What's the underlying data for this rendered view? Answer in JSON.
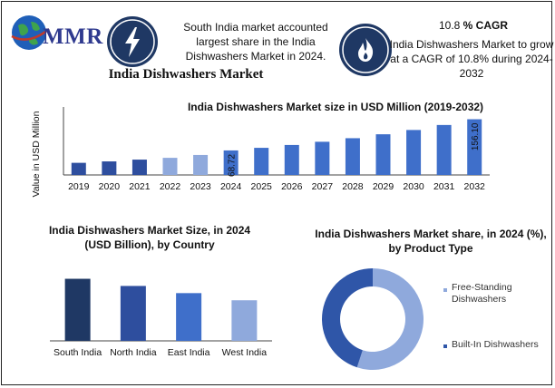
{
  "header": {
    "logo_text": "MMR",
    "info1": "South India market accounted largest share in the India Dishwashers Market in 2024.",
    "cagr_prefix": "10.8 ",
    "cagr_label": "% CAGR",
    "info2": "India Dishwashers Market to grow at a CAGR of 10.8% during 2024-2032",
    "main_title": "India Dishwashers Market"
  },
  "colors": {
    "navy": "#1f3864",
    "bar_dark": "#2e4e9e",
    "bar_mid": "#3f6fca",
    "bar_light": "#8fa9dc",
    "pie_light": "#8fa9dc",
    "pie_dark": "#2f56a8"
  },
  "chart_data": [
    {
      "type": "bar",
      "title": "India Dishwashers Market size in USD Million (2019-2032)",
      "ylabel": "Value in USD Million",
      "xlabel": "",
      "categories": [
        "2019",
        "2020",
        "2021",
        "2022",
        "2023",
        "2024",
        "2025",
        "2026",
        "2027",
        "2028",
        "2029",
        "2030",
        "2031",
        "2032"
      ],
      "values": [
        34,
        38,
        43,
        48,
        56,
        68.72,
        76,
        84,
        93,
        103,
        114,
        126,
        140,
        156.1
      ],
      "data_labels": {
        "5": "68.72",
        "13": "156.10"
      },
      "ylim": [
        0,
        160
      ],
      "grid": false
    },
    {
      "type": "bar",
      "title": "India Dishwashers Market Size, in 2024 (USD Billion), by Country",
      "categories": [
        "South India",
        "North India",
        "East India",
        "West India"
      ],
      "values": [
        26,
        23,
        20,
        17
      ],
      "ylim": [
        0,
        30
      ],
      "grid": false
    },
    {
      "type": "pie",
      "title": "India Dishwashers Market share, in 2024 (%), by Product Type",
      "categories": [
        "Free-Standing Dishwashers",
        "Built-In Dishwashers"
      ],
      "values": [
        55,
        45
      ],
      "legend": "right"
    }
  ]
}
